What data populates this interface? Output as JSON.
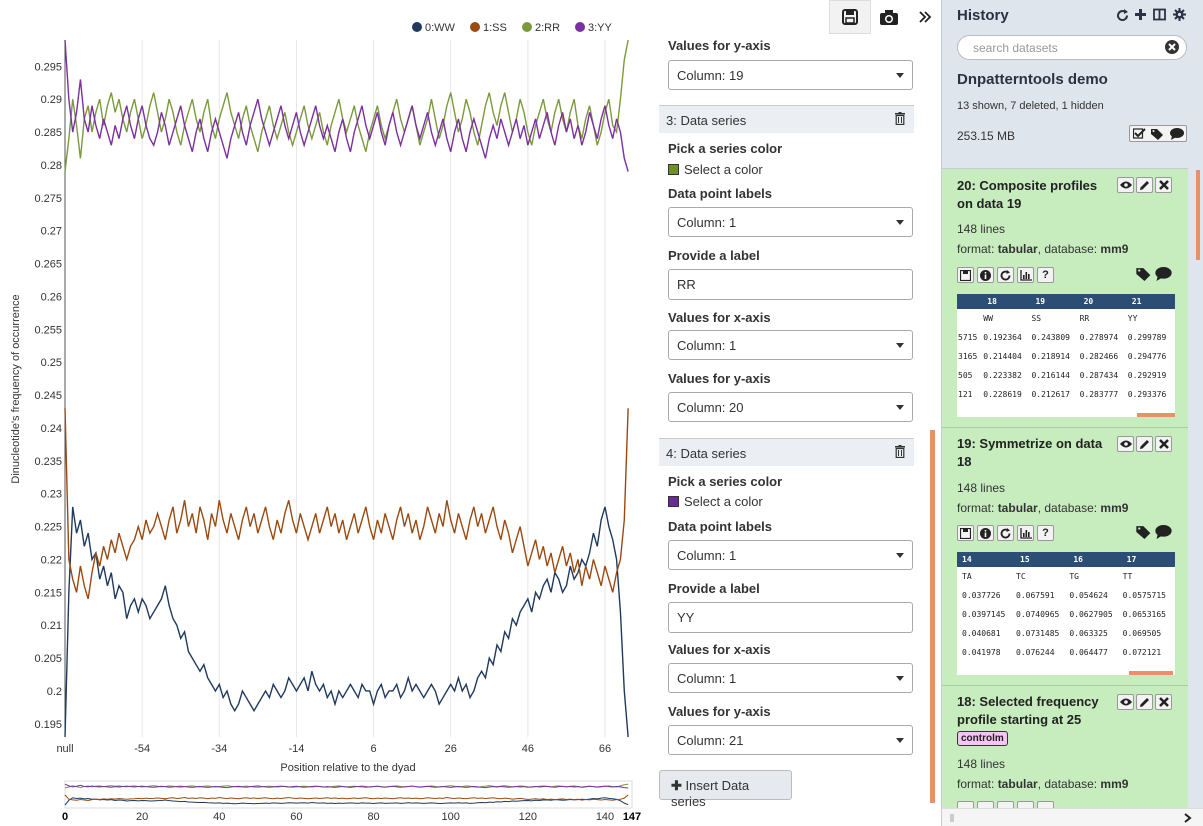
{
  "chart_data": {
    "type": "line",
    "xlabel": "Position relative to the dyad",
    "ylabel": "Dinucleotide's frequency of occurrence",
    "xlim": [
      0,
      147
    ],
    "ylim": [
      0.193,
      0.299
    ],
    "x_tick_labels": [
      "null",
      "-54",
      "-34",
      "-14",
      "6",
      "26",
      "46",
      "66"
    ],
    "x_tick_positions": [
      0,
      20,
      40,
      60,
      80,
      100,
      120,
      140
    ],
    "y_ticks": [
      0.195,
      0.2,
      0.205,
      0.21,
      0.215,
      0.22,
      0.225,
      0.23,
      0.235,
      0.24,
      0.245,
      0.25,
      0.255,
      0.26,
      0.265,
      0.27,
      0.275,
      0.28,
      0.285,
      0.29,
      0.295
    ],
    "y_tick_labels": [
      "0.195",
      "0.2",
      "0.205",
      "0.21",
      "0.215",
      "0.22",
      "0.225",
      "0.23",
      "0.235",
      "0.24",
      "0.245",
      "0.25",
      "0.255",
      "0.26",
      "0.265",
      "0.27",
      "0.275",
      "0.28",
      "0.285",
      "0.29",
      "0.295"
    ],
    "grid": true,
    "legend_position": "top-center",
    "series": [
      {
        "name": "0:WW",
        "color": "#1f3a5c",
        "values": [
          0.19,
          0.215,
          0.228,
          0.224,
          0.226,
          0.222,
          0.224,
          0.22,
          0.221,
          0.217,
          0.219,
          0.216,
          0.218,
          0.214,
          0.216,
          0.215,
          0.211,
          0.213,
          0.214,
          0.212,
          0.214,
          0.213,
          0.211,
          0.212,
          0.213,
          0.214,
          0.216,
          0.213,
          0.211,
          0.21,
          0.208,
          0.209,
          0.206,
          0.205,
          0.204,
          0.203,
          0.204,
          0.202,
          0.201,
          0.2,
          0.201,
          0.199,
          0.2,
          0.198,
          0.197,
          0.198,
          0.2,
          0.199,
          0.198,
          0.197,
          0.198,
          0.199,
          0.2,
          0.199,
          0.201,
          0.2,
          0.199,
          0.2,
          0.202,
          0.201,
          0.2,
          0.201,
          0.202,
          0.2,
          0.203,
          0.201,
          0.2,
          0.201,
          0.199,
          0.2,
          0.198,
          0.2,
          0.199,
          0.2,
          0.201,
          0.2,
          0.199,
          0.201,
          0.2,
          0.2,
          0.198,
          0.2,
          0.201,
          0.199,
          0.2,
          0.2,
          0.201,
          0.199,
          0.2,
          0.202,
          0.2,
          0.201,
          0.2,
          0.199,
          0.2,
          0.201,
          0.2,
          0.198,
          0.199,
          0.2,
          0.201,
          0.2,
          0.202,
          0.2,
          0.201,
          0.199,
          0.2,
          0.202,
          0.203,
          0.202,
          0.205,
          0.204,
          0.207,
          0.206,
          0.209,
          0.208,
          0.211,
          0.21,
          0.212,
          0.213,
          0.214,
          0.212,
          0.215,
          0.214,
          0.216,
          0.217,
          0.215,
          0.218,
          0.217,
          0.215,
          0.216,
          0.219,
          0.217,
          0.218,
          0.22,
          0.219,
          0.221,
          0.224,
          0.222,
          0.226,
          0.228,
          0.225,
          0.223,
          0.22,
          0.212,
          0.2,
          0.192
        ]
      },
      {
        "name": "1:SS",
        "color": "#9a4a10",
        "values": [
          0.243,
          0.22,
          0.217,
          0.215,
          0.219,
          0.216,
          0.214,
          0.218,
          0.221,
          0.219,
          0.222,
          0.22,
          0.223,
          0.221,
          0.224,
          0.222,
          0.22,
          0.222,
          0.223,
          0.225,
          0.223,
          0.226,
          0.224,
          0.225,
          0.227,
          0.225,
          0.223,
          0.226,
          0.228,
          0.224,
          0.226,
          0.229,
          0.225,
          0.227,
          0.224,
          0.228,
          0.226,
          0.223,
          0.227,
          0.225,
          0.229,
          0.226,
          0.224,
          0.227,
          0.225,
          0.223,
          0.226,
          0.228,
          0.225,
          0.227,
          0.224,
          0.226,
          0.228,
          0.225,
          0.223,
          0.226,
          0.224,
          0.227,
          0.229,
          0.226,
          0.224,
          0.227,
          0.225,
          0.223,
          0.225,
          0.227,
          0.224,
          0.226,
          0.228,
          0.225,
          0.227,
          0.224,
          0.226,
          0.223,
          0.225,
          0.227,
          0.224,
          0.226,
          0.228,
          0.225,
          0.223,
          0.226,
          0.224,
          0.227,
          0.225,
          0.223,
          0.226,
          0.228,
          0.225,
          0.227,
          0.224,
          0.226,
          0.223,
          0.225,
          0.228,
          0.226,
          0.224,
          0.227,
          0.225,
          0.229,
          0.226,
          0.224,
          0.227,
          0.225,
          0.223,
          0.226,
          0.228,
          0.225,
          0.227,
          0.224,
          0.226,
          0.228,
          0.225,
          0.223,
          0.226,
          0.224,
          0.221,
          0.223,
          0.225,
          0.222,
          0.219,
          0.221,
          0.223,
          0.22,
          0.222,
          0.219,
          0.221,
          0.218,
          0.22,
          0.222,
          0.219,
          0.221,
          0.218,
          0.22,
          0.216,
          0.219,
          0.217,
          0.22,
          0.218,
          0.216,
          0.219,
          0.217,
          0.215,
          0.218,
          0.22,
          0.226,
          0.243
        ]
      },
      {
        "name": "2:RR",
        "color": "#7a9a3c",
        "values": [
          0.279,
          0.284,
          0.29,
          0.286,
          0.281,
          0.287,
          0.289,
          0.285,
          0.288,
          0.29,
          0.286,
          0.289,
          0.291,
          0.288,
          0.29,
          0.287,
          0.285,
          0.288,
          0.29,
          0.287,
          0.284,
          0.286,
          0.289,
          0.291,
          0.288,
          0.285,
          0.287,
          0.29,
          0.288,
          0.285,
          0.283,
          0.286,
          0.288,
          0.29,
          0.287,
          0.285,
          0.288,
          0.29,
          0.286,
          0.284,
          0.287,
          0.289,
          0.291,
          0.288,
          0.286,
          0.284,
          0.287,
          0.289,
          0.286,
          0.284,
          0.282,
          0.285,
          0.287,
          0.289,
          0.286,
          0.284,
          0.286,
          0.288,
          0.285,
          0.283,
          0.285,
          0.287,
          0.289,
          0.286,
          0.284,
          0.286,
          0.288,
          0.285,
          0.283,
          0.286,
          0.288,
          0.29,
          0.287,
          0.285,
          0.287,
          0.289,
          0.286,
          0.284,
          0.282,
          0.285,
          0.287,
          0.289,
          0.286,
          0.284,
          0.286,
          0.288,
          0.29,
          0.287,
          0.285,
          0.287,
          0.289,
          0.286,
          0.283,
          0.285,
          0.287,
          0.29,
          0.287,
          0.284,
          0.286,
          0.289,
          0.291,
          0.288,
          0.285,
          0.287,
          0.29,
          0.288,
          0.285,
          0.283,
          0.286,
          0.289,
          0.291,
          0.288,
          0.286,
          0.289,
          0.291,
          0.288,
          0.285,
          0.287,
          0.29,
          0.288,
          0.285,
          0.283,
          0.286,
          0.288,
          0.29,
          0.287,
          0.285,
          0.288,
          0.29,
          0.287,
          0.285,
          0.288,
          0.29,
          0.286,
          0.284,
          0.287,
          0.289,
          0.286,
          0.283,
          0.285,
          0.288,
          0.29,
          0.286,
          0.285,
          0.29,
          0.296,
          0.299
        ]
      },
      {
        "name": "3:YY",
        "color": "#7b2fa0",
        "values": [
          0.299,
          0.29,
          0.285,
          0.288,
          0.293,
          0.287,
          0.285,
          0.289,
          0.286,
          0.284,
          0.287,
          0.285,
          0.283,
          0.286,
          0.284,
          0.287,
          0.289,
          0.286,
          0.284,
          0.287,
          0.289,
          0.286,
          0.284,
          0.283,
          0.285,
          0.288,
          0.286,
          0.283,
          0.285,
          0.287,
          0.289,
          0.286,
          0.284,
          0.282,
          0.285,
          0.287,
          0.284,
          0.282,
          0.285,
          0.287,
          0.285,
          0.283,
          0.281,
          0.284,
          0.286,
          0.288,
          0.285,
          0.283,
          0.286,
          0.288,
          0.29,
          0.287,
          0.285,
          0.283,
          0.285,
          0.287,
          0.289,
          0.286,
          0.284,
          0.286,
          0.288,
          0.285,
          0.283,
          0.285,
          0.287,
          0.289,
          0.286,
          0.284,
          0.286,
          0.284,
          0.282,
          0.285,
          0.287,
          0.284,
          0.282,
          0.285,
          0.287,
          0.289,
          0.286,
          0.284,
          0.286,
          0.288,
          0.285,
          0.283,
          0.286,
          0.288,
          0.285,
          0.283,
          0.285,
          0.287,
          0.289,
          0.286,
          0.284,
          0.286,
          0.288,
          0.285,
          0.283,
          0.285,
          0.287,
          0.284,
          0.282,
          0.285,
          0.287,
          0.284,
          0.282,
          0.285,
          0.287,
          0.285,
          0.283,
          0.281,
          0.284,
          0.286,
          0.284,
          0.287,
          0.285,
          0.283,
          0.285,
          0.287,
          0.284,
          0.286,
          0.283,
          0.285,
          0.287,
          0.284,
          0.286,
          0.288,
          0.285,
          0.283,
          0.286,
          0.288,
          0.285,
          0.287,
          0.284,
          0.286,
          0.283,
          0.285,
          0.288,
          0.286,
          0.284,
          0.287,
          0.289,
          0.286,
          0.284,
          0.287,
          0.285,
          0.281,
          0.279
        ]
      }
    ],
    "navigator_ticks": [
      "0",
      "20",
      "40",
      "60",
      "80",
      "100",
      "120",
      "140",
      "147"
    ]
  },
  "toolbar": {
    "save_icon": "floppy-disk-icon",
    "camera_icon": "camera-icon",
    "expand_icon": "double-chevron-right-icon"
  },
  "panel": {
    "top_y_label": "Values for y-axis",
    "top_y_value": "Column: 19",
    "series3": {
      "header": "3: Data series",
      "color_label": "Pick a series color",
      "color_select": "Select a color",
      "color": "#6e8f2e",
      "dp_label": "Data point labels",
      "dp_value": "Column: 1",
      "provide_label": "Provide a label",
      "label_value": "RR",
      "x_label": "Values for x-axis",
      "x_value": "Column: 1",
      "y_label": "Values for y-axis",
      "y_value": "Column: 20"
    },
    "series4": {
      "header": "4: Data series",
      "color_label": "Pick a series color",
      "color_select": "Select a color",
      "color": "#6b2c8f",
      "dp_label": "Data point labels",
      "dp_value": "Column: 1",
      "provide_label": "Provide a label",
      "label_value": "YY",
      "x_label": "Values for x-axis",
      "x_value": "Column: 1",
      "y_label": "Values for y-axis",
      "y_value": "Column: 21"
    },
    "insert_label": "Insert Data series"
  },
  "history": {
    "title": "History",
    "search_placeholder": "search datasets",
    "history_name": "Dnpatterntools demo",
    "counts": "13 shown, 7 deleted, 1 hidden",
    "size": "253.15 MB",
    "datasets": [
      {
        "title": "20: Composite profiles on data 19",
        "lines": "148 lines",
        "format_label": "format: ",
        "format": "tabular",
        "db_label": ", database: ",
        "db": "mm9",
        "peek_headers": [
          "18",
          "19",
          "20",
          "21"
        ],
        "peek_rows": [
          [
            "",
            "WW",
            "SS",
            "RR",
            "YY"
          ],
          [
            "5715",
            "0.192364",
            "0.243809",
            "0.278974",
            "0.299789"
          ],
          [
            "3165",
            "0.214404",
            "0.218914",
            "0.282466",
            "0.294776"
          ],
          [
            "505",
            "0.223382",
            "0.216144",
            "0.287434",
            "0.292919"
          ],
          [
            "121",
            "0.228619",
            "0.212617",
            "0.283777",
            "0.293376"
          ]
        ]
      },
      {
        "title": "19: Symmetrize on data 18",
        "lines": "148 lines",
        "format_label": "format: ",
        "format": "tabular",
        "db_label": ", database: ",
        "db": "mm9",
        "peek_headers": [
          "14",
          "15",
          "16",
          "17"
        ],
        "peek_rows": [
          [
            "TA",
            "TC",
            "TG",
            "TT"
          ],
          [
            "0.037726",
            "0.067591",
            "0.054624",
            "0.0575715"
          ],
          [
            "0.0397145",
            "0.0740965",
            "0.0627905",
            "0.0653165"
          ],
          [
            "0.040681",
            "0.0731485",
            "0.063325",
            "0.069505"
          ],
          [
            "0.041978",
            "0.076244",
            "0.064477",
            "0.072121"
          ]
        ]
      },
      {
        "title": "18: Selected frequency profile starting at 25",
        "tag": "controlm",
        "lines": "148 lines",
        "format_label": "format: ",
        "format": "tabular",
        "db_label": ", database: ",
        "db": "mm9"
      }
    ]
  }
}
